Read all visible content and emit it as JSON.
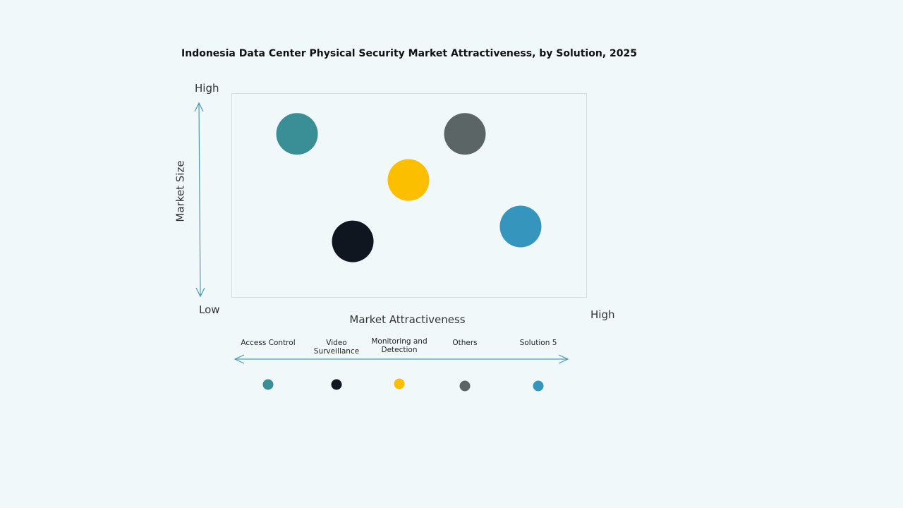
{
  "chart_data": {
    "type": "scatter",
    "title": "Indonesia Data Center Physical Security Market Attractiveness,  by Solution, 2025",
    "xlabel": "Market Attractiveness",
    "ylabel": "Market Size",
    "x_low_label": "Low",
    "x_high_label": "High",
    "y_high_label": "High",
    "xlim": [
      0,
      1
    ],
    "ylim": [
      0,
      1
    ],
    "grid": false,
    "legend_placement": "bottom",
    "series": [
      {
        "name": "Access Control",
        "x": 0.185,
        "y": 0.8,
        "color": "#3a8f96"
      },
      {
        "name": "Video Surveillance",
        "x": 0.342,
        "y": 0.273,
        "color": "#10161f"
      },
      {
        "name": "Monitoring and Detection",
        "x": 0.499,
        "y": 0.574,
        "color": "#fbbf00"
      },
      {
        "name": "Others",
        "x": 0.658,
        "y": 0.8,
        "color": "#5c6566"
      },
      {
        "name": "Solution 5",
        "x": 0.815,
        "y": 0.346,
        "color": "#3595bc"
      }
    ]
  }
}
